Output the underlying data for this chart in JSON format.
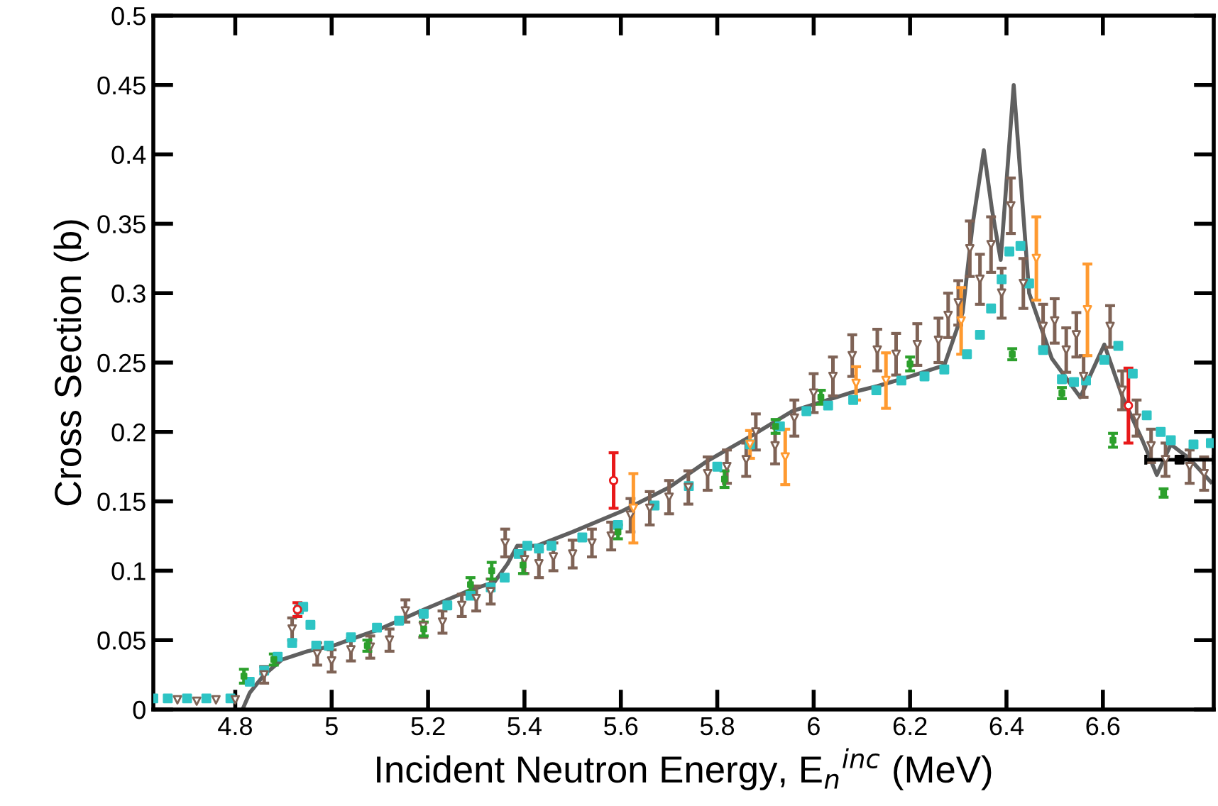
{
  "chart_data": {
    "type": "scatter",
    "xlabel": "Incident Neutron Energy, E$_{n}$$^{inc}$ (MeV)",
    "ylabel": "Cross Section (b)",
    "xlim": [
      4.63,
      6.83
    ],
    "xticks": [
      4.8,
      5,
      5.2,
      5.4,
      5.6,
      5.8,
      6,
      6.2,
      6.4,
      6.6
    ],
    "ylim": [
      0,
      0.5
    ],
    "yticks": [
      0,
      0.05,
      0.1,
      0.15,
      0.2,
      0.25,
      0.3,
      0.35,
      0.4,
      0.45,
      0.5
    ],
    "grid": false,
    "legend": false,
    "series": [
      {
        "type": "line",
        "color": "#606060",
        "marker": "none",
        "x": [
          4.815,
          4.83,
          4.86,
          4.897,
          4.95,
          5.003,
          5.1,
          5.191,
          5.28,
          5.338,
          5.365,
          5.385,
          5.426,
          5.5,
          5.603,
          5.7,
          5.779,
          5.87,
          5.956,
          6.074,
          6.132,
          6.2,
          6.271,
          6.309,
          6.33,
          6.353,
          6.37,
          6.388,
          6.4,
          6.415,
          6.43,
          6.447,
          6.494,
          6.553,
          6.603,
          6.641,
          6.682,
          6.712,
          6.741,
          6.779,
          6.824
        ],
        "values": [
          0,
          0.012,
          0.025,
          0.036,
          0.042,
          0.046,
          0.058,
          0.072,
          0.085,
          0.092,
          0.105,
          0.118,
          0.118,
          0.128,
          0.143,
          0.16,
          0.179,
          0.197,
          0.215,
          0.228,
          0.233,
          0.24,
          0.248,
          0.286,
          0.35,
          0.403,
          0.36,
          0.324,
          0.38,
          0.45,
          0.38,
          0.3,
          0.253,
          0.225,
          0.263,
          0.225,
          0.194,
          0.169,
          0.191,
          0.181,
          0.164
        ]
      },
      {
        "color": "#2ec4c4",
        "marker": "square",
        "x": [
          4.63,
          4.66,
          4.7,
          4.74,
          4.79,
          4.83,
          4.86,
          4.888,
          4.918,
          4.932,
          4.941,
          4.956,
          4.968,
          4.994,
          5.04,
          5.094,
          5.14,
          5.191,
          5.24,
          5.288,
          5.33,
          5.359,
          5.388,
          5.406,
          5.43,
          5.456,
          5.52,
          5.594,
          5.67,
          5.741,
          5.8,
          5.868,
          5.93,
          5.985,
          6.03,
          6.082,
          6.13,
          6.182,
          6.23,
          6.271,
          6.318,
          6.345,
          6.368,
          6.39,
          6.406,
          6.429,
          6.447,
          6.476,
          6.515,
          6.54,
          6.565,
          6.603,
          6.632,
          6.662,
          6.691,
          6.72,
          6.741,
          6.788,
          6.824
        ],
        "values": [
          0.008,
          0.008,
          0.008,
          0.008,
          0.008,
          0.02,
          0.028,
          0.038,
          0.048,
          0.072,
          0.074,
          0.061,
          0.046,
          0.046,
          0.052,
          0.059,
          0.064,
          0.069,
          0.075,
          0.082,
          0.088,
          0.095,
          0.112,
          0.118,
          0.116,
          0.118,
          0.124,
          0.133,
          0.147,
          0.161,
          0.175,
          0.191,
          0.204,
          0.215,
          0.219,
          0.223,
          0.23,
          0.237,
          0.24,
          0.245,
          0.256,
          0.27,
          0.289,
          0.31,
          0.33,
          0.334,
          0.307,
          0.259,
          0.238,
          0.236,
          0.237,
          0.252,
          0.262,
          0.242,
          0.212,
          0.2,
          0.194,
          0.191,
          0.192
        ]
      },
      {
        "color": "#7f6356",
        "marker": "triangle",
        "x": [
          4.68,
          4.72,
          4.76,
          4.8,
          4.86,
          4.918,
          4.97,
          5.0,
          5.04,
          5.08,
          5.12,
          5.153,
          5.19,
          5.23,
          5.27,
          5.3,
          5.33,
          5.36,
          5.4,
          5.43,
          5.46,
          5.5,
          5.54,
          5.58,
          5.62,
          5.66,
          5.7,
          5.74,
          5.78,
          5.82,
          5.86,
          5.88,
          5.92,
          5.96,
          6.0,
          6.04,
          6.08,
          6.132,
          6.171,
          6.215,
          6.259,
          6.279,
          6.3,
          6.324,
          6.345,
          6.368,
          6.39,
          6.409,
          6.435,
          6.476,
          6.5,
          6.524,
          6.545,
          6.56,
          6.615,
          6.64,
          6.67,
          6.7,
          6.73,
          6.78,
          6.81
        ],
        "values": [
          0.007,
          0.006,
          0.007,
          0.007,
          0.025,
          0.058,
          0.04,
          0.035,
          0.043,
          0.045,
          0.05,
          0.071,
          0.06,
          0.063,
          0.075,
          0.08,
          0.085,
          0.12,
          0.108,
          0.105,
          0.11,
          0.112,
          0.12,
          0.125,
          0.14,
          0.145,
          0.153,
          0.16,
          0.17,
          0.175,
          0.18,
          0.2,
          0.19,
          0.21,
          0.228,
          0.24,
          0.255,
          0.259,
          0.256,
          0.263,
          0.266,
          0.284,
          0.293,
          0.332,
          0.31,
          0.335,
          0.3,
          0.363,
          0.307,
          0.276,
          0.28,
          0.259,
          0.27,
          0.24,
          0.276,
          0.23,
          0.21,
          0.19,
          0.18,
          0.175,
          0.17
        ],
        "errors": [
          null,
          null,
          null,
          null,
          0.006,
          0.008,
          0.008,
          0.008,
          0.008,
          0.008,
          0.008,
          0.008,
          0.008,
          0.008,
          0.008,
          0.009,
          0.009,
          0.01,
          0.01,
          0.01,
          0.01,
          0.01,
          0.01,
          0.01,
          0.012,
          0.012,
          0.012,
          0.012,
          0.012,
          0.012,
          0.012,
          0.013,
          0.013,
          0.013,
          0.014,
          0.014,
          0.015,
          0.015,
          0.015,
          0.015,
          0.016,
          0.016,
          0.016,
          0.02,
          0.018,
          0.02,
          0.018,
          0.02,
          0.018,
          0.016,
          0.016,
          0.016,
          0.016,
          0.015,
          0.015,
          0.014,
          0.013,
          0.012,
          0.012,
          0.012,
          0.012
        ]
      },
      {
        "color": "#2ca02c",
        "marker": "square",
        "x": [
          4.818,
          4.88,
          5.074,
          5.191,
          5.288,
          5.332,
          5.397,
          5.594,
          5.815,
          5.921,
          6.015,
          6.2,
          6.412,
          6.515,
          6.621,
          6.726
        ],
        "values": [
          0.024,
          0.036,
          0.046,
          0.058,
          0.09,
          0.1,
          0.104,
          0.128,
          0.166,
          0.204,
          0.225,
          0.249,
          0.256,
          0.228,
          0.194,
          0.156
        ],
        "errors": [
          0.005,
          0.004,
          0.004,
          0.005,
          0.005,
          0.006,
          0.006,
          0.005,
          0.006,
          0.005,
          0.005,
          0.005,
          0.004,
          0.004,
          0.005,
          0.003
        ]
      },
      {
        "color": "#ff9a30",
        "marker": "triangle",
        "x": [
          5.626,
          5.868,
          5.941,
          6.088,
          6.15,
          6.306,
          6.462,
          6.568
        ],
        "values": [
          0.145,
          0.191,
          0.182,
          0.235,
          0.237,
          0.28,
          0.325,
          0.288
        ],
        "errors": [
          0.025,
          0.01,
          0.02,
          0.012,
          0.02,
          0.024,
          0.03,
          0.033
        ]
      },
      {
        "color": "#e8191a",
        "marker": "circle",
        "x": [
          4.929,
          5.585,
          6.653
        ],
        "values": [
          0.072,
          0.165,
          0.219
        ],
        "errors": [
          0.005,
          0.02,
          0.027
        ]
      },
      {
        "color": "#000000",
        "marker": "square",
        "x": [
          6.759
        ],
        "values": [
          0.18
        ],
        "xerrors": [
          0.07
        ]
      }
    ]
  }
}
